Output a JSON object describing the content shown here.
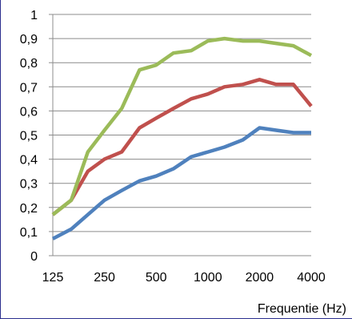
{
  "chart_data": {
    "type": "line",
    "title": "",
    "xlabel": "Frequentie (Hz)",
    "ylabel": "",
    "x_tick_labels": [
      "125",
      "250",
      "500",
      "1000",
      "2000",
      "4000"
    ],
    "x": [
      125,
      160,
      200,
      250,
      315,
      400,
      500,
      630,
      800,
      1000,
      1250,
      1600,
      2000,
      2500,
      3150,
      4000
    ],
    "xlim": [
      125,
      4000
    ],
    "x_scale": "log",
    "ylim": [
      0,
      1
    ],
    "y_ticks": [
      0,
      0.1,
      0.2,
      0.3,
      0.4,
      0.5,
      0.6,
      0.7,
      0.8,
      0.9,
      1
    ],
    "y_tick_labels": [
      "0",
      "0,1",
      "0,2",
      "0,3",
      "0,4",
      "0,5",
      "0,6",
      "0,7",
      "0,8",
      "0,9",
      "1"
    ],
    "grid": true,
    "series": [
      {
        "color": "#4f81bd",
        "values": [
          0.07,
          0.11,
          0.17,
          0.23,
          0.27,
          0.31,
          0.33,
          0.36,
          0.41,
          0.43,
          0.45,
          0.48,
          0.53,
          0.52,
          0.51,
          0.51
        ]
      },
      {
        "color": "#c0504d",
        "values": [
          0.17,
          0.23,
          0.35,
          0.4,
          0.43,
          0.53,
          0.57,
          0.61,
          0.65,
          0.67,
          0.7,
          0.71,
          0.73,
          0.71,
          0.71,
          0.62
        ]
      },
      {
        "color": "#9bbb59",
        "values": [
          0.17,
          0.23,
          0.43,
          0.52,
          0.61,
          0.77,
          0.79,
          0.84,
          0.85,
          0.89,
          0.9,
          0.89,
          0.89,
          0.88,
          0.87,
          0.83
        ]
      }
    ]
  }
}
